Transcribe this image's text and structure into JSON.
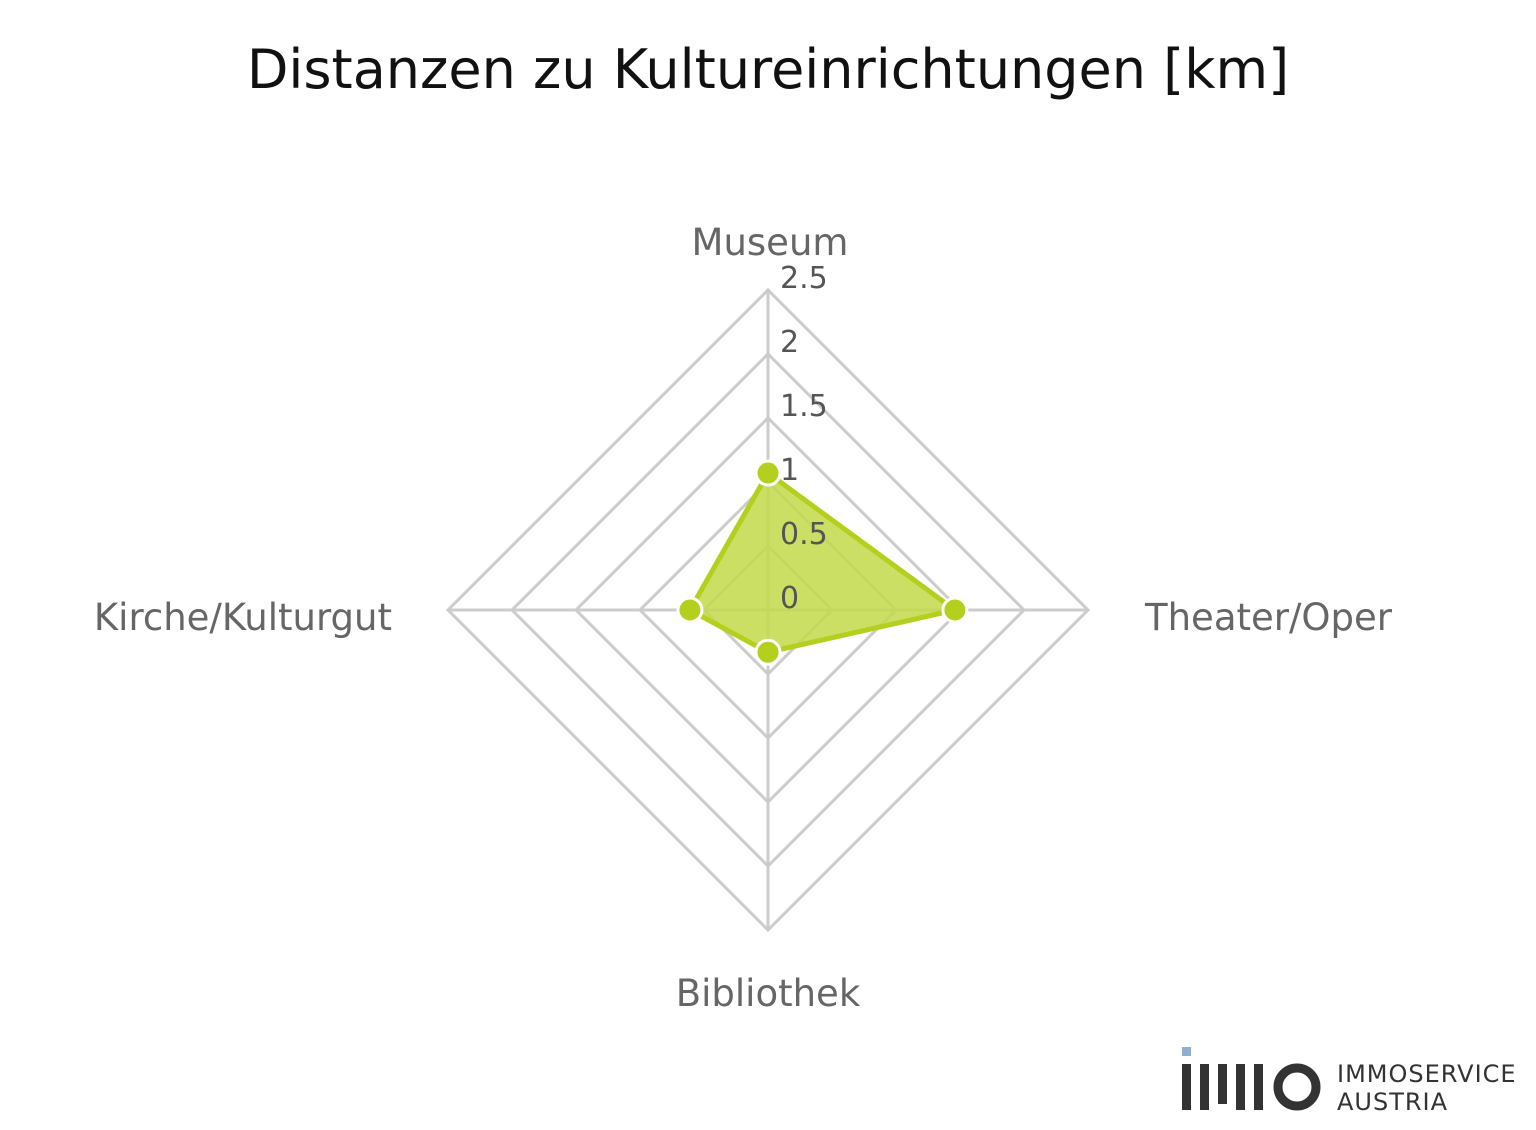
{
  "chart_data": {
    "type": "radar",
    "title": "Distanzen zu Kultureinrichtungen [km]",
    "categories": [
      "Museum",
      "Theater/Oper",
      "Bibliothek",
      "Kirche/Kulturgut"
    ],
    "series": [
      {
        "values": [
          1.07,
          1.46,
          0.33,
          0.61
        ]
      }
    ],
    "radial_ticks": [
      "0",
      "0.5",
      "1",
      "1.5",
      "2",
      "2.5"
    ],
    "radial_tick_values": [
      0,
      0.5,
      1,
      1.5,
      2,
      2.5
    ],
    "rlim": [
      0,
      2.5
    ],
    "grid": true,
    "colors": {
      "series": "#b5cf1e",
      "fill": "#c3d94a",
      "grid": "#cccccc",
      "label": "#666666"
    }
  },
  "logo": {
    "line1": "IMMOSERVICE",
    "line2": "AUSTRIA"
  }
}
